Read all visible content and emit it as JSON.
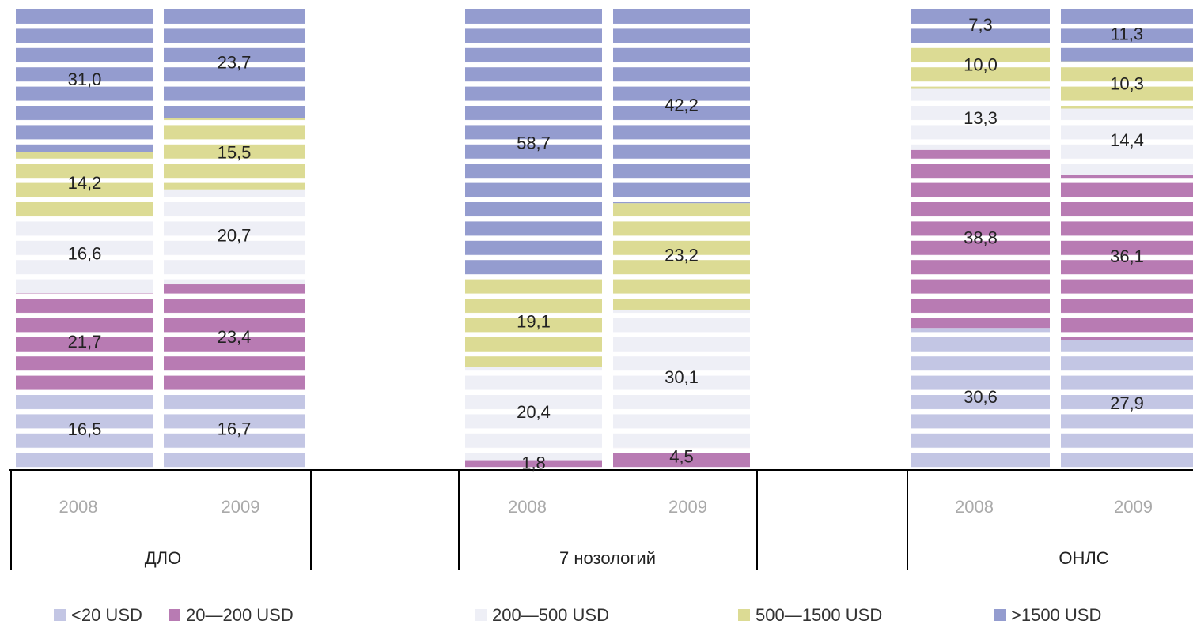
{
  "chart_data": {
    "type": "stacked_bar",
    "categories": [
      "2008",
      "2009",
      "2008",
      "2009",
      "2008",
      "2009"
    ],
    "groups": [
      "ДЛО",
      "7 нозологий",
      "ОНЛС"
    ],
    "ylim": [
      0,
      100
    ],
    "series": [
      {
        "name": "<20 USD",
        "color": "#c3c6e4",
        "values": [
          16.5,
          16.7,
          null,
          null,
          30.6,
          27.9
        ],
        "value_labels": [
          "16,5",
          "16,7",
          null,
          null,
          "30,6",
          "27,9"
        ]
      },
      {
        "name": "20—200 USD",
        "color": "#b87bb3",
        "values": [
          21.7,
          23.4,
          1.8,
          4.5,
          38.8,
          36.1
        ],
        "value_labels": [
          "21,7",
          "23,4",
          "1,8",
          "4,5",
          "38,8",
          "36,1"
        ]
      },
      {
        "name": "200—500 USD",
        "color": "#eeeff6",
        "values": [
          16.6,
          20.7,
          20.4,
          30.1,
          13.3,
          14.4
        ],
        "value_labels": [
          "16,6",
          "20,7",
          "20,4",
          "30,1",
          "13,3",
          "14,4"
        ]
      },
      {
        "name": "500—1500 USD",
        "color": "#dcdb94",
        "values": [
          14.2,
          15.5,
          19.1,
          23.2,
          10.0,
          10.3
        ],
        "value_labels": [
          "14,2",
          "15,5",
          "19,1",
          "23,2",
          "10,0",
          "10,3"
        ]
      },
      {
        "name": ">1500 USD",
        "color": "#949ccf",
        "values": [
          31.0,
          23.7,
          58.7,
          42.2,
          7.3,
          11.3
        ],
        "value_labels": [
          "31,0",
          "23,7",
          "58,7",
          "42,2",
          "7,3",
          "11,3"
        ]
      }
    ]
  }
}
